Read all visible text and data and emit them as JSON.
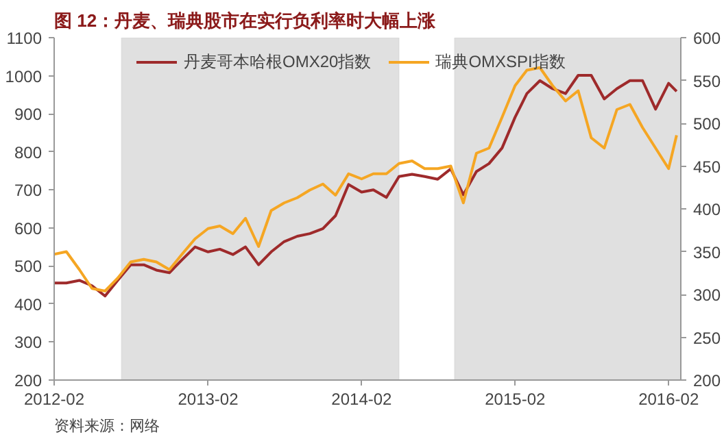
{
  "chart_data": {
    "type": "line",
    "title": "图 12：丹麦、瑞典股市在实行负利率时大幅上涨",
    "x": [
      "2012-02",
      "2012-03",
      "2012-04",
      "2012-05",
      "2012-06",
      "2012-07",
      "2012-08",
      "2012-09",
      "2012-10",
      "2012-11",
      "2012-12",
      "2013-01",
      "2013-02",
      "2013-03",
      "2013-04",
      "2013-05",
      "2013-06",
      "2013-07",
      "2013-08",
      "2013-09",
      "2013-10",
      "2013-11",
      "2013-12",
      "2014-01",
      "2014-02",
      "2014-03",
      "2014-04",
      "2014-05",
      "2014-06",
      "2014-07",
      "2014-08",
      "2014-09",
      "2014-10",
      "2014-11",
      "2014-12",
      "2015-01",
      "2015-02",
      "2015-03",
      "2015-04",
      "2015-05",
      "2015-06",
      "2015-07",
      "2015-08",
      "2015-09",
      "2015-10",
      "2015-11",
      "2015-12",
      "2016-01",
      "2016-02",
      "2016-02-20"
    ],
    "series": [
      {
        "name": "丹麦哥本哈根OMX20指数",
        "color": "#9e2a2b",
        "values": [
          455,
          455,
          462,
          448,
          421,
          462,
          503,
          503,
          489,
          482,
          516,
          550,
          537,
          544,
          530,
          550,
          503,
          537,
          564,
          578,
          585,
          598,
          632,
          714,
          694,
          700,
          680,
          735,
          741,
          735,
          728,
          755,
          687,
          748,
          769,
          810,
          891,
          953,
          987,
          966,
          953,
          1001,
          1001,
          939,
          966,
          987,
          987,
          912,
          980,
          959
        ]
      },
      {
        "name": "瑞典OMXSPI指数",
        "color": "#f5a623",
        "axis": "y2",
        "values": [
          347,
          350,
          329,
          307,
          304,
          319,
          338,
          341,
          338,
          329,
          347,
          365,
          377,
          380,
          371,
          389,
          356,
          398,
          407,
          413,
          422,
          429,
          416,
          441,
          435,
          441,
          441,
          453,
          456,
          447,
          447,
          450,
          407,
          465,
          471,
          507,
          544,
          562,
          565,
          544,
          526,
          538,
          483,
          471,
          516,
          522,
          495,
          471,
          447,
          486
        ]
      }
    ],
    "xlim": [
      "2012-02",
      "2016-03"
    ],
    "xticks": [
      "2012-02",
      "2013-02",
      "2014-02",
      "2015-02",
      "2016-02"
    ],
    "ylim": [
      200,
      1100
    ],
    "yticks": [
      200,
      300,
      400,
      500,
      600,
      700,
      800,
      900,
      1000,
      1100
    ],
    "y2lim": [
      200,
      600
    ],
    "y2ticks": [
      200,
      250,
      300,
      350,
      400,
      450,
      500,
      550,
      600
    ],
    "bands": [
      {
        "axis": "x",
        "from": "2012-07-10",
        "to": "2014-05-01",
        "color": "#e0e0e0"
      },
      {
        "axis": "x",
        "from": "2014-09-10",
        "to": "2016-03",
        "color": "#e0e0e0"
      }
    ],
    "legend": "top",
    "grid": false,
    "annotations": [
      "资料来源：网络"
    ]
  }
}
